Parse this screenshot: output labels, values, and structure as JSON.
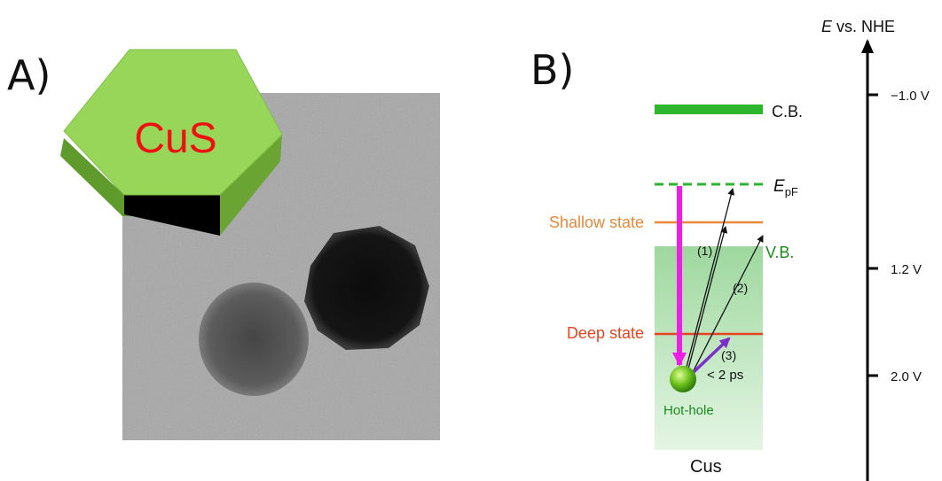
{
  "panel_a": {
    "label": "A)",
    "material_label": "CuS",
    "colors": {
      "hex_top": "#9ad95a",
      "hex_side": "#5f9a2c",
      "hex_text": "#ee1111",
      "tem_bg": "#a8a8a8"
    }
  },
  "panel_b": {
    "label": "B)",
    "axis_title_italic": "E",
    "axis_title_rest": " vs. NHE",
    "ticks": [
      "−1.0 V",
      "1.2 V",
      "2.0 V"
    ],
    "levels": {
      "cb": "C.B.",
      "epf_main": "E",
      "epf_sub": "pF",
      "shallow": "Shallow state",
      "vb": "V.B.",
      "deep": "Deep state"
    },
    "transitions": [
      "(1)",
      "(2)",
      "(3)"
    ],
    "time": "< 2 ps",
    "hot_hole": "Hot-hole",
    "material": "Cus",
    "colors": {
      "cb": "#2db52d",
      "vb_band": "#bfe8bf",
      "shallow": "#e8883a",
      "deep": "#e8431f",
      "magenta": "#f01ce8",
      "purple": "#7a30c8",
      "label_green": "#1a8a1a"
    }
  }
}
